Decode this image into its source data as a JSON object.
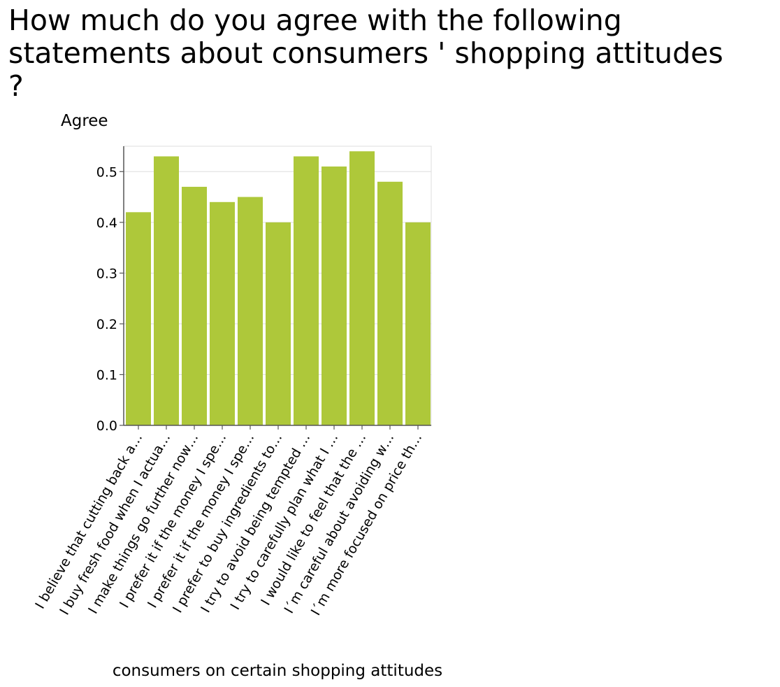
{
  "chart_data": {
    "type": "bar",
    "title": "How much do you agree with the following\nstatements about consumers ' shopping attitudes\n?",
    "ylabel": "Agree",
    "xlabel": "consumers on certain shopping attitudes",
    "categories": [
      "I believe that cutting back a…",
      "I buy fresh food when I actua…",
      "I make things go further now…",
      "I prefer it if the money I spe…",
      "I prefer it if the money I spe…",
      "I prefer to buy ingredients to…",
      "I try to avoid being tempted …",
      "I try to carefully plan what I …",
      "I would like to feel that the …",
      "I´m careful about avoiding w…",
      "I´m more focused on price th…"
    ],
    "values": [
      0.42,
      0.53,
      0.47,
      0.44,
      0.45,
      0.4,
      0.53,
      0.51,
      0.54,
      0.48,
      0.4
    ],
    "ylim": [
      0,
      0.55
    ],
    "yticks": [
      0.0,
      0.1,
      0.2,
      0.3,
      0.4,
      0.5
    ],
    "ytick_labels": [
      "0.0",
      "0.1",
      "0.2",
      "0.3",
      "0.4",
      "0.5"
    ],
    "grid": true,
    "bar_color": "#aec83a",
    "grid_color": "#dddddd",
    "axis_color": "#555555"
  }
}
